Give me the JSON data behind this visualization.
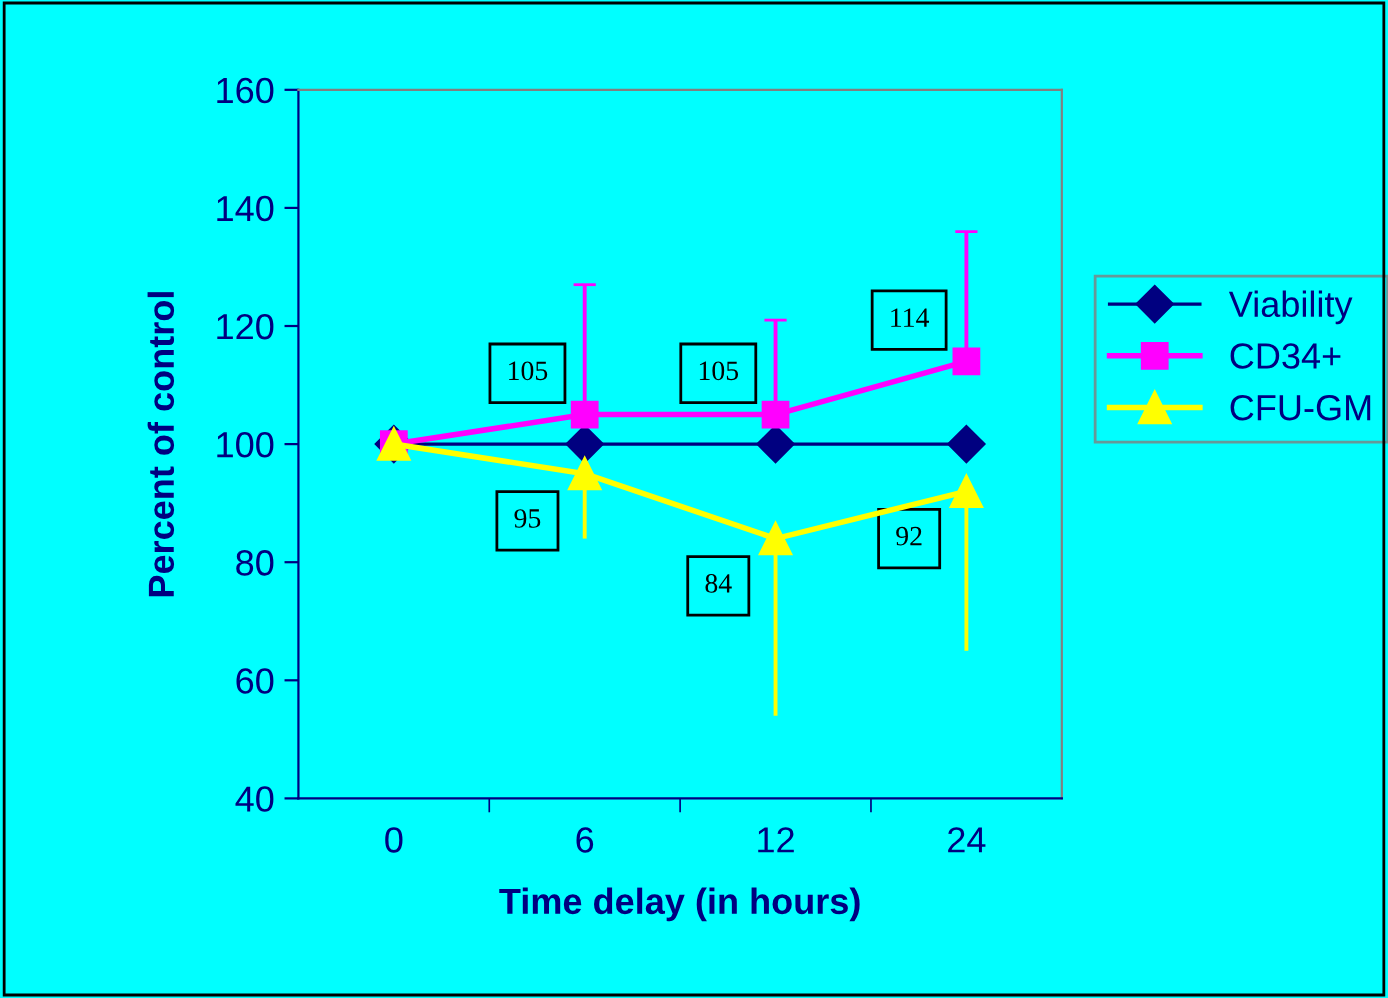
{
  "chart_data": {
    "type": "line",
    "xlabel": "Time delay (in hours)",
    "ylabel": "Percent of control",
    "categories": [
      "0",
      "6",
      "12",
      "24"
    ],
    "ylim": [
      40,
      160
    ],
    "yticks": [
      40,
      60,
      80,
      100,
      120,
      140,
      160
    ],
    "grid": false,
    "legend": "right",
    "series": [
      {
        "name": "Viability",
        "color": "#000080",
        "marker": "diamond",
        "values": [
          100,
          100,
          100,
          100
        ]
      },
      {
        "name": "CD34+",
        "color": "#ff00ff",
        "marker": "square",
        "values": [
          100,
          105,
          105,
          114
        ],
        "errors": [
          null,
          [
            105,
            127
          ],
          [
            105,
            121
          ],
          [
            114,
            136
          ]
        ],
        "value_labels": [
          null,
          "105",
          "105",
          "114"
        ]
      },
      {
        "name": "CFU-GM",
        "color": "#ffff00",
        "marker": "triangle",
        "values": [
          100,
          95,
          84,
          92
        ],
        "errors": [
          null,
          [
            84,
            95
          ],
          [
            54,
            84
          ],
          [
            65,
            92
          ]
        ],
        "value_labels": [
          null,
          "95",
          "84",
          "92"
        ]
      }
    ]
  }
}
